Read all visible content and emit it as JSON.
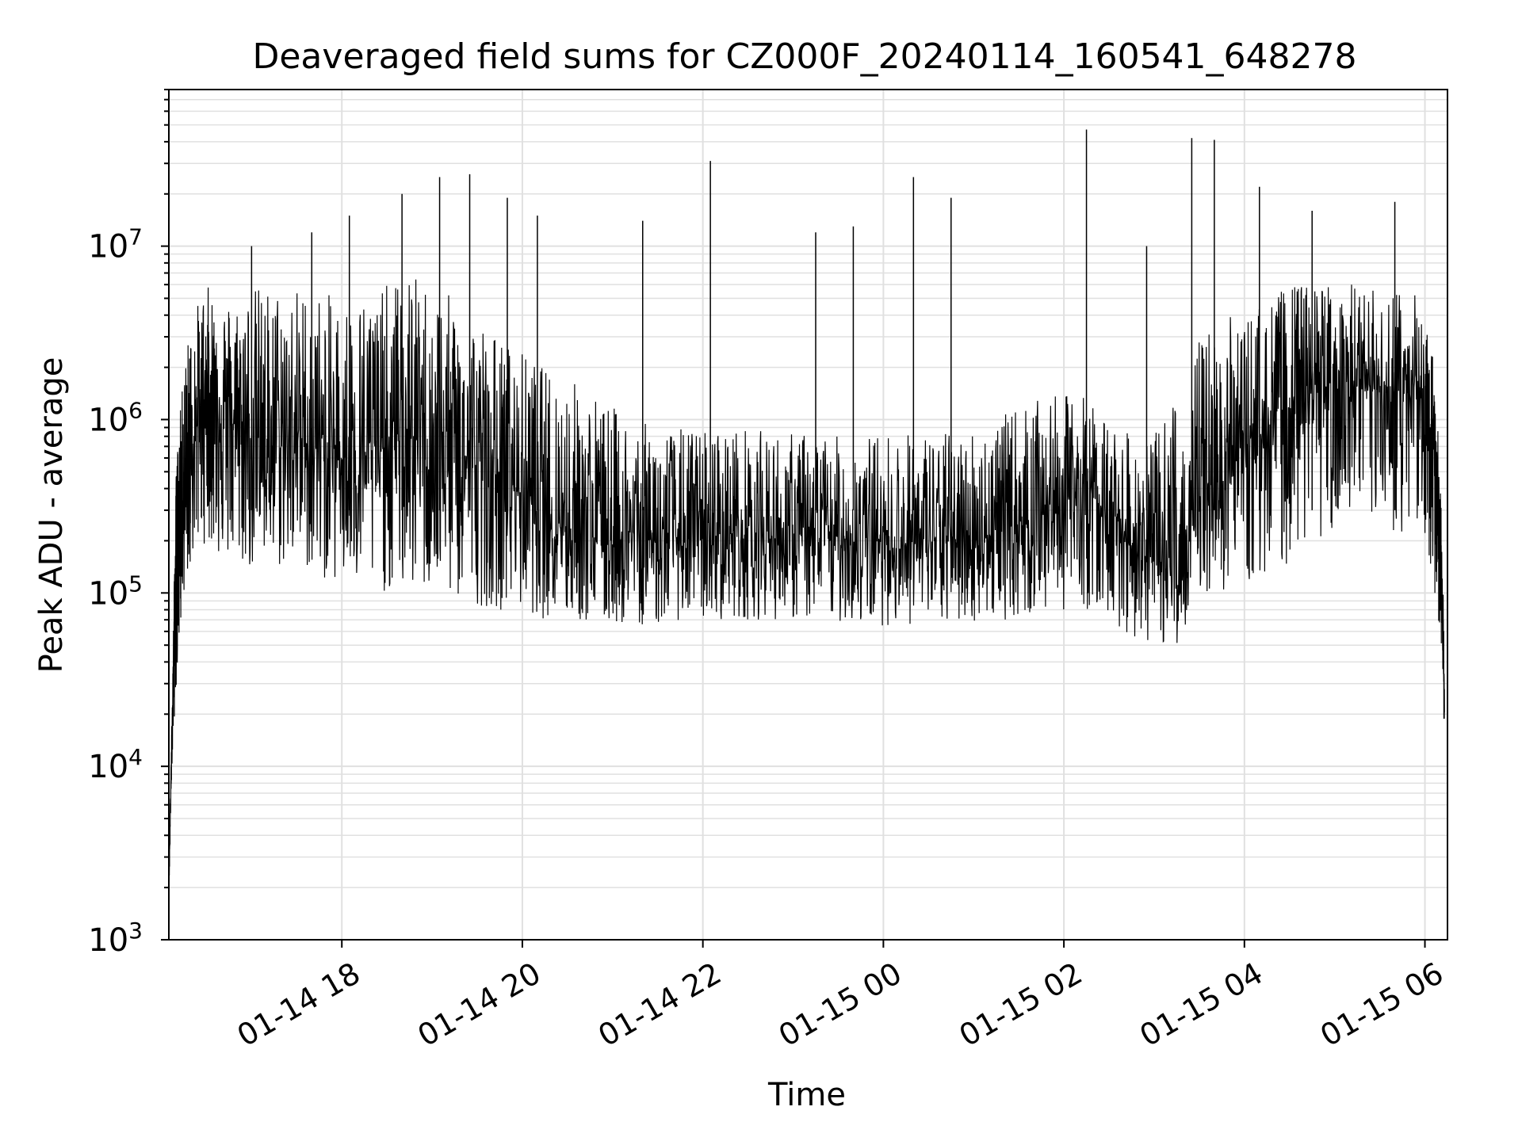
{
  "chart_data": {
    "type": "line",
    "title": "Deaveraged field sums for CZ000F_20240114_160541_648278",
    "xlabel": "Time",
    "ylabel": "Peak ADU - average",
    "yscale": "log",
    "ylim": [
      1000,
      80000000
    ],
    "xlim": [
      "2024-01-14 16:05",
      "2024-01-15 06:15"
    ],
    "grid": "on (major and minor)",
    "line_color": "#000000",
    "grid_color": "#e0e0e0",
    "y_ticks": [
      {
        "base": "10",
        "exp": "3"
      },
      {
        "base": "10",
        "exp": "4"
      },
      {
        "base": "10",
        "exp": "5"
      },
      {
        "base": "10",
        "exp": "6"
      },
      {
        "base": "10",
        "exp": "7"
      }
    ],
    "x_ticks": [
      "01-14 18",
      "01-14 20",
      "01-14 22",
      "01-15 00",
      "01-15 02",
      "01-15 04",
      "01-15 06"
    ],
    "series": [
      {
        "values_note_excluded": false,
        "x": [
          "2024-01-14 16:05",
          "2024-01-14 16:07",
          "2024-01-14 16:10",
          "2024-01-14 16:15",
          "2024-01-14 16:20",
          "2024-01-14 16:30",
          "2024-01-14 16:40",
          "2024-01-14 16:50",
          "2024-01-14 17:00",
          "2024-01-14 17:15",
          "2024-01-14 17:30",
          "2024-01-14 17:45",
          "2024-01-14 18:00",
          "2024-01-14 18:15",
          "2024-01-14 18:30",
          "2024-01-14 18:45",
          "2024-01-14 19:00",
          "2024-01-14 19:15",
          "2024-01-14 19:30",
          "2024-01-14 19:45",
          "2024-01-14 20:00",
          "2024-01-14 20:15",
          "2024-01-14 20:30",
          "2024-01-14 20:45",
          "2024-01-14 21:00",
          "2024-01-14 21:15",
          "2024-01-14 21:30",
          "2024-01-14 21:45",
          "2024-01-14 22:00",
          "2024-01-14 22:15",
          "2024-01-14 22:30",
          "2024-01-14 22:45",
          "2024-01-14 23:00",
          "2024-01-14 23:15",
          "2024-01-14 23:30",
          "2024-01-14 23:45",
          "2024-01-15 00:00",
          "2024-01-15 00:15",
          "2024-01-15 00:30",
          "2024-01-15 00:45",
          "2024-01-15 01:00",
          "2024-01-15 01:15",
          "2024-01-15 01:30",
          "2024-01-15 01:45",
          "2024-01-15 02:00",
          "2024-01-15 02:15",
          "2024-01-15 02:30",
          "2024-01-15 02:45",
          "2024-01-15 03:00",
          "2024-01-15 03:15",
          "2024-01-15 03:30",
          "2024-01-15 03:45",
          "2024-01-15 04:00",
          "2024-01-15 04:15",
          "2024-01-15 04:30",
          "2024-01-15 04:45",
          "2024-01-15 05:00",
          "2024-01-15 05:15",
          "2024-01-15 05:30",
          "2024-01-15 05:45",
          "2024-01-15 06:00",
          "2024-01-15 06:05",
          "2024-01-15 06:10",
          "2024-01-15 06:13"
        ],
        "y": [
          2000,
          15000,
          250000,
          400000,
          700000,
          1500000,
          1200000,
          900000,
          800000,
          700000,
          800000,
          650000,
          600000,
          650000,
          700000,
          800000,
          700000,
          600000,
          550000,
          450000,
          400000,
          300000,
          250000,
          220000,
          200000,
          220000,
          200000,
          210000,
          200000,
          220000,
          230000,
          210000,
          200000,
          220000,
          210000,
          200000,
          200000,
          190000,
          200000,
          200000,
          210000,
          220000,
          250000,
          300000,
          350000,
          400000,
          300000,
          200000,
          150000,
          120000,
          300000,
          600000,
          700000,
          900000,
          1200000,
          1500000,
          1600000,
          1500000,
          1400000,
          1500000,
          1300000,
          800000,
          300000,
          20000
        ],
        "envelope_upper": [
          2000,
          20000,
          600000,
          2000000,
          4000000,
          6000000,
          5000000,
          5000000,
          6000000,
          6000000,
          6000000,
          5500000,
          5000000,
          5500000,
          6000000,
          7000000,
          6000000,
          5000000,
          4000000,
          3000000,
          2500000,
          2000000,
          1800000,
          1500000,
          1200000,
          1000000,
          900000,
          900000,
          900000,
          900000,
          900000,
          850000,
          850000,
          850000,
          800000,
          800000,
          850000,
          850000,
          850000,
          850000,
          900000,
          1000000,
          1200000,
          1300000,
          1400000,
          1400000,
          1000000,
          800000,
          800000,
          1500000,
          3000000,
          4000000,
          4000000,
          5000000,
          6000000,
          6000000,
          6500000,
          6000000,
          5500000,
          6000000,
          5000000,
          2500000,
          600000,
          50000
        ],
        "envelope_lower": [
          1700,
          10000,
          30000,
          100000,
          150000,
          200000,
          150000,
          150000,
          130000,
          130000,
          150000,
          120000,
          110000,
          100000,
          100000,
          100000,
          100000,
          90000,
          85000,
          80000,
          80000,
          70000,
          70000,
          65000,
          65000,
          65000,
          65000,
          70000,
          70000,
          70000,
          70000,
          70000,
          70000,
          68000,
          68000,
          65000,
          65000,
          65000,
          65000,
          65000,
          68000,
          70000,
          70000,
          75000,
          80000,
          80000,
          70000,
          55000,
          50000,
          50000,
          100000,
          100000,
          110000,
          120000,
          150000,
          200000,
          220000,
          200000,
          200000,
          220000,
          200000,
          120000,
          60000,
          15000
        ],
        "spikes": [
          [
            "2024-01-14 17:00",
            10000000
          ],
          [
            "2024-01-14 17:40",
            12000000
          ],
          [
            "2024-01-14 18:05",
            15000000
          ],
          [
            "2024-01-14 18:40",
            20000000
          ],
          [
            "2024-01-14 19:05",
            25000000
          ],
          [
            "2024-01-14 19:25",
            26000000
          ],
          [
            "2024-01-14 19:50",
            19000000
          ],
          [
            "2024-01-14 20:10",
            15000000
          ],
          [
            "2024-01-14 21:20",
            14000000
          ],
          [
            "2024-01-14 22:05",
            31000000
          ],
          [
            "2024-01-14 23:15",
            12000000
          ],
          [
            "2024-01-14 23:40",
            13000000
          ],
          [
            "2024-01-15 00:20",
            25000000
          ],
          [
            "2024-01-15 00:45",
            19000000
          ],
          [
            "2024-01-15 02:15",
            47000000
          ],
          [
            "2024-01-15 02:55",
            10000000
          ],
          [
            "2024-01-15 03:25",
            42000000
          ],
          [
            "2024-01-15 03:40",
            41000000
          ],
          [
            "2024-01-15 04:10",
            22000000
          ],
          [
            "2024-01-15 04:45",
            16000000
          ],
          [
            "2024-01-15 05:40",
            18000000
          ]
        ]
      }
    ]
  }
}
